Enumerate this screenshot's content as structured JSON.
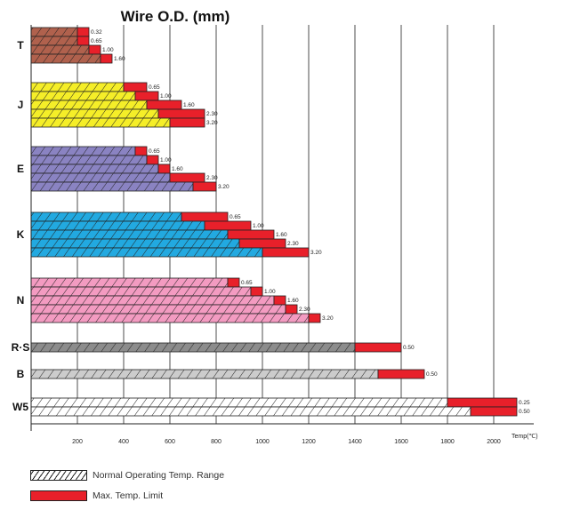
{
  "chart_data": {
    "type": "bar",
    "title": "Wire O.D. (mm)",
    "xlabel": "Temp(℃)",
    "xlim": [
      0,
      2200
    ],
    "xticks": [
      200,
      400,
      600,
      800,
      1000,
      1200,
      1400,
      1600,
      1800,
      2000
    ],
    "legend": {
      "normal": "Normal Operating Temp. Range",
      "max": "Max. Temp. Limit"
    },
    "groups": [
      {
        "name": "T",
        "color": "#b0614d",
        "bars": [
          {
            "od": "0.32",
            "normal": 200,
            "max": 250
          },
          {
            "od": "0.65",
            "normal": 200,
            "max": 250
          },
          {
            "od": "1.00",
            "normal": 250,
            "max": 300
          },
          {
            "od": "1.60",
            "normal": 300,
            "max": 350
          }
        ]
      },
      {
        "name": "J",
        "color": "#f5ee28",
        "bars": [
          {
            "od": "0.65",
            "normal": 400,
            "max": 500
          },
          {
            "od": "1.00",
            "normal": 450,
            "max": 550
          },
          {
            "od": "1.60",
            "normal": 500,
            "max": 650
          },
          {
            "od": "2.30",
            "normal": 550,
            "max": 750
          },
          {
            "od": "3.20",
            "normal": 600,
            "max": 750
          }
        ]
      },
      {
        "name": "E",
        "color": "#8a83c2",
        "bars": [
          {
            "od": "0.65",
            "normal": 450,
            "max": 500
          },
          {
            "od": "1.00",
            "normal": 500,
            "max": 550
          },
          {
            "od": "1.60",
            "normal": 550,
            "max": 600
          },
          {
            "od": "2.30",
            "normal": 600,
            "max": 750
          },
          {
            "od": "3.20",
            "normal": 700,
            "max": 800
          }
        ]
      },
      {
        "name": "K",
        "color": "#22a9e0",
        "bars": [
          {
            "od": "0.65",
            "normal": 650,
            "max": 850
          },
          {
            "od": "1.00",
            "normal": 750,
            "max": 950
          },
          {
            "od": "1.60",
            "normal": 850,
            "max": 1050
          },
          {
            "od": "2.30",
            "normal": 900,
            "max": 1100
          },
          {
            "od": "3.20",
            "normal": 1000,
            "max": 1200
          }
        ]
      },
      {
        "name": "N",
        "color": "#f39bc1",
        "bars": [
          {
            "od": "0.65",
            "normal": 850,
            "max": 900
          },
          {
            "od": "1.00",
            "normal": 950,
            "max": 1000
          },
          {
            "od": "1.60",
            "normal": 1050,
            "max": 1100
          },
          {
            "od": "2.30",
            "normal": 1100,
            "max": 1150
          },
          {
            "od": "3.20",
            "normal": 1200,
            "max": 1250
          }
        ]
      },
      {
        "name": "R·S",
        "color": "#8c8c8c",
        "bars": [
          {
            "od": "0.50",
            "normal": 1400,
            "max": 1600
          }
        ]
      },
      {
        "name": "B",
        "color": "#cccccc",
        "bars": [
          {
            "od": "0.50",
            "normal": 1500,
            "max": 1700
          }
        ]
      },
      {
        "name": "W5",
        "color": "#ffffff",
        "bars": [
          {
            "od": "0.25",
            "normal": 1800,
            "max": 2100
          },
          {
            "od": "0.50",
            "normal": 1900,
            "max": 2100
          }
        ]
      }
    ],
    "colors": {
      "max": "#e8202a",
      "axis": "#222222"
    },
    "grid": true
  }
}
